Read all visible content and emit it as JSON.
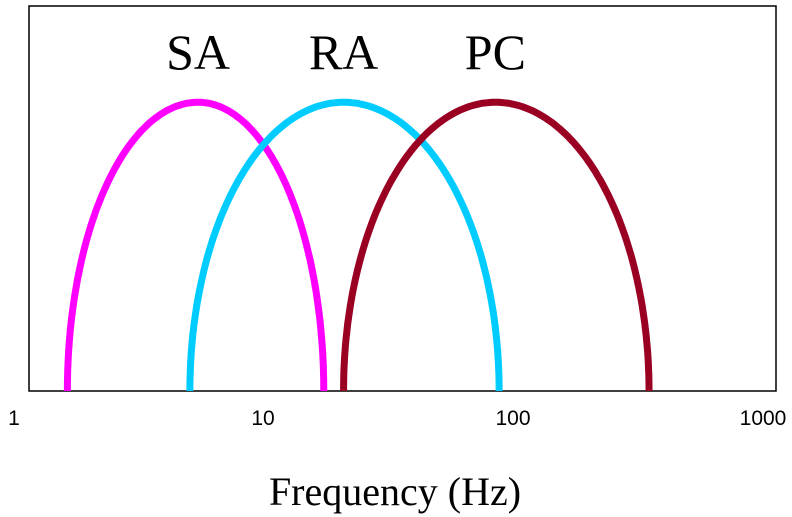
{
  "chart_data": {
    "type": "line",
    "title": "",
    "xlabel": "Frequency (Hz)",
    "ylabel": "",
    "xscale": "log",
    "xlim": [
      1,
      1000
    ],
    "ylim": [
      0,
      1
    ],
    "x_ticks": [
      1,
      10,
      100,
      1000
    ],
    "x_tick_labels": [
      "1",
      "10",
      "100",
      "1000"
    ],
    "grid": false,
    "legend": "labels above curves",
    "series": [
      {
        "name": "SA",
        "color": "#ff00ff",
        "peak_x": 5.5,
        "peak_y": 0.75,
        "range": [
          1.65,
          17.5
        ]
      },
      {
        "name": "RA",
        "color": "#00ccff",
        "peak_x": 21,
        "peak_y": 0.75,
        "range": [
          5.1,
          88
        ]
      },
      {
        "name": "PC",
        "color": "#990022",
        "peak_x": 85,
        "peak_y": 0.75,
        "range": [
          21,
          350
        ]
      }
    ]
  }
}
